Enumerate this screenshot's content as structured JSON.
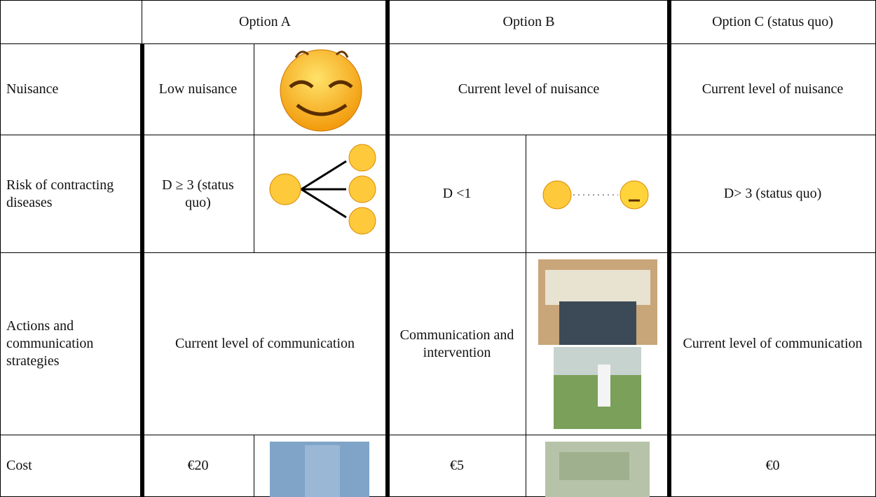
{
  "table": {
    "columns": [
      "Option A",
      "Option B",
      "Option C (status quo)"
    ],
    "rows": [
      {
        "label": "Nuisance",
        "cells": [
          "Low nuisance",
          "Current level of nuisance",
          "Current level of nuisance"
        ]
      },
      {
        "label": "Risk of contracting diseases",
        "cells": [
          "D ≥ 3 (status quo)",
          "D <1",
          "D> 3 (status quo)"
        ]
      },
      {
        "label": "Actions and communication strategies",
        "cells": [
          "Current level of communication",
          "Communication and intervention",
          "Current level of communication"
        ]
      },
      {
        "label": "Cost",
        "cells": [
          "€20",
          "€5",
          "€0"
        ]
      }
    ]
  }
}
